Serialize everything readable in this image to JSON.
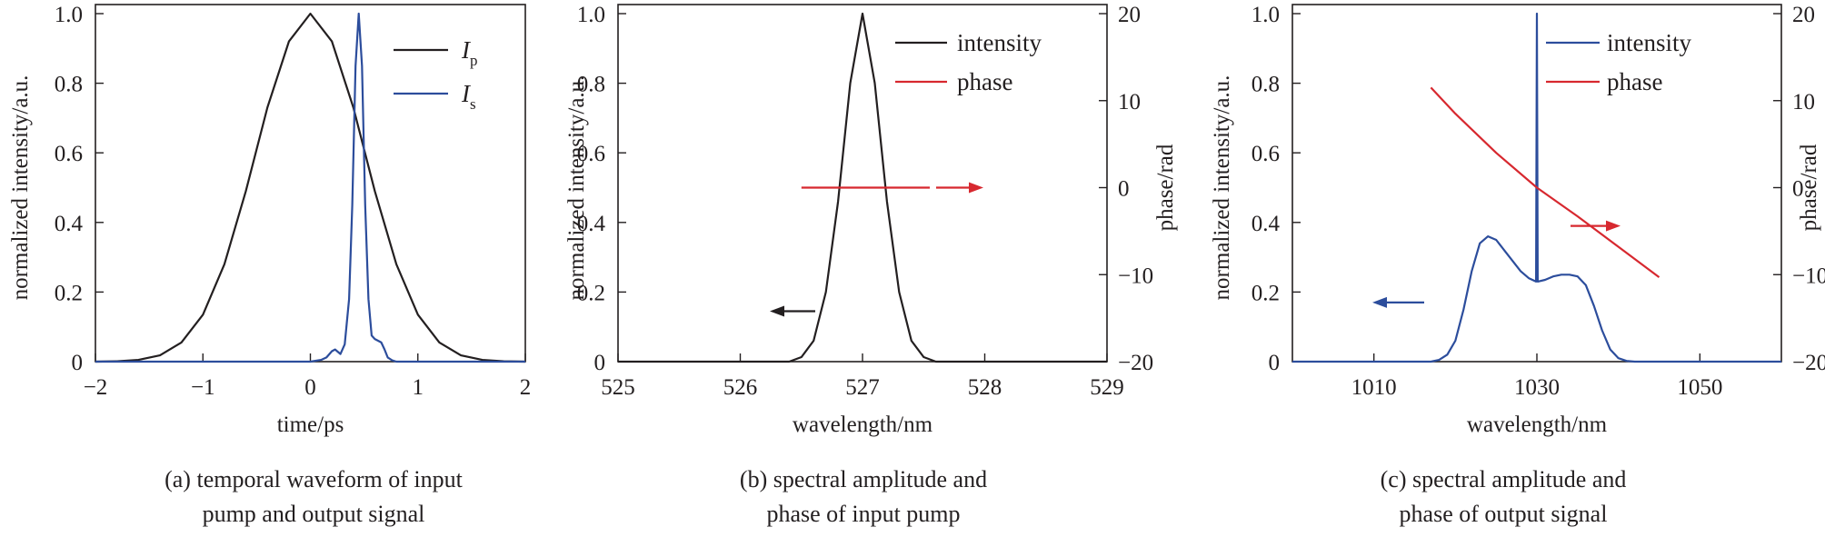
{
  "chart_data": [
    {
      "panel": "a",
      "type": "line",
      "xlabel": "time/ps",
      "ylabel": "normalized intensity/a.u.",
      "xlim": [
        -2,
        2
      ],
      "ylim": [
        0,
        1.0
      ],
      "xticks": [
        "−2",
        "−1",
        "0",
        "1",
        "2"
      ],
      "yticks": [
        "0",
        "0.2",
        "0.4",
        "0.6",
        "0.8",
        "1.0"
      ],
      "caption": [
        "(a) temporal waveform of input",
        "pump and output signal"
      ],
      "legend_position": "top-right",
      "series": [
        {
          "name": "I",
          "subscript": "p",
          "color": "#231f20",
          "x": [
            -2,
            -1.8,
            -1.6,
            -1.4,
            -1.2,
            -1.0,
            -0.8,
            -0.6,
            -0.4,
            -0.2,
            0,
            0.2,
            0.4,
            0.6,
            0.8,
            1.0,
            1.2,
            1.4,
            1.6,
            1.8,
            2.0
          ],
          "y": [
            0,
            0.001,
            0.005,
            0.018,
            0.055,
            0.135,
            0.28,
            0.49,
            0.73,
            0.92,
            1.0,
            0.92,
            0.73,
            0.49,
            0.28,
            0.135,
            0.055,
            0.018,
            0.005,
            0.001,
            0
          ]
        },
        {
          "name": "I",
          "subscript": "s",
          "color": "#2c4d9c",
          "x": [
            -2,
            0.0,
            0.1,
            0.15,
            0.2,
            0.23,
            0.28,
            0.32,
            0.36,
            0.39,
            0.42,
            0.45,
            0.48,
            0.51,
            0.54,
            0.57,
            0.6,
            0.63,
            0.66,
            0.69,
            0.72,
            0.76,
            0.8,
            1.0,
            2.0
          ],
          "y": [
            0,
            0.0,
            0.005,
            0.012,
            0.03,
            0.035,
            0.022,
            0.05,
            0.18,
            0.45,
            0.85,
            1.0,
            0.85,
            0.45,
            0.18,
            0.075,
            0.065,
            0.06,
            0.055,
            0.035,
            0.012,
            0.004,
            0.0,
            0,
            0
          ]
        }
      ]
    },
    {
      "panel": "b",
      "type": "line",
      "xlabel": "wavelength/nm",
      "ylabel": "normalized intensity/a.u.",
      "y2label": "phase/rad",
      "xlim": [
        525,
        529
      ],
      "ylim": [
        0,
        1.0
      ],
      "y2lim": [
        -20,
        20
      ],
      "xticks": [
        "525",
        "526",
        "527",
        "528",
        "529"
      ],
      "yticks": [
        "0",
        "0.2",
        "0.4",
        "0.6",
        "0.8",
        "1.0"
      ],
      "y2ticks": [
        "−20",
        "−10",
        "0",
        "10",
        "20"
      ],
      "caption": [
        "(b) spectral amplitude and",
        "phase of input pump"
      ],
      "legend_position": "top-right",
      "series": [
        {
          "name": "intensity",
          "color": "#231f20",
          "axis": "left",
          "x": [
            525,
            526.4,
            526.5,
            526.6,
            526.7,
            526.8,
            526.9,
            527.0,
            527.1,
            527.2,
            527.3,
            527.4,
            527.5,
            527.6,
            529
          ],
          "y": [
            0,
            0.0,
            0.013,
            0.06,
            0.2,
            0.46,
            0.8,
            1.0,
            0.8,
            0.46,
            0.2,
            0.06,
            0.013,
            0.0,
            0
          ]
        },
        {
          "name": "phase",
          "color": "#d7282f",
          "axis": "right",
          "x": [
            526.5,
            527.55
          ],
          "y": [
            0,
            0
          ]
        }
      ],
      "arrows": [
        {
          "direction": "left",
          "color": "#231f20",
          "axis": "left"
        },
        {
          "direction": "right",
          "color": "#d7282f",
          "axis": "right"
        }
      ]
    },
    {
      "panel": "c",
      "type": "line",
      "xlabel": "wavelength/nm",
      "ylabel": "normalized intensity/a.u.",
      "y2label": "phase/rad",
      "xlim": [
        1000,
        1060
      ],
      "ylim": [
        0,
        1.0
      ],
      "y2lim": [
        -20,
        20
      ],
      "xticks": [
        "1010",
        "1030",
        "1050"
      ],
      "yticks": [
        "0",
        "0.2",
        "0.4",
        "0.6",
        "0.8",
        "1.0"
      ],
      "y2ticks": [
        "−20",
        "−10",
        "0",
        "10",
        "20"
      ],
      "caption": [
        "(c) spectral amplitude and",
        "phase of output signal"
      ],
      "legend_position": "top-right",
      "series": [
        {
          "name": "intensity",
          "color": "#2c4d9c",
          "axis": "left",
          "x": [
            1000,
            1017,
            1018,
            1019,
            1020,
            1021,
            1022,
            1023,
            1024,
            1025,
            1026,
            1027,
            1028,
            1029,
            1029.9,
            1030,
            1030.1,
            1031,
            1032,
            1033,
            1034,
            1035,
            1036,
            1037,
            1038,
            1039,
            1040,
            1041,
            1042,
            1060
          ],
          "y": [
            0,
            0.0,
            0.005,
            0.02,
            0.06,
            0.15,
            0.26,
            0.34,
            0.36,
            0.35,
            0.32,
            0.29,
            0.26,
            0.24,
            0.23,
            1.0,
            0.23,
            0.235,
            0.245,
            0.25,
            0.25,
            0.245,
            0.22,
            0.16,
            0.09,
            0.035,
            0.01,
            0.002,
            0.0,
            0
          ]
        },
        {
          "name": "phase",
          "color": "#d7282f",
          "axis": "right",
          "x": [
            1017,
            1020,
            1025,
            1030,
            1035,
            1040,
            1045
          ],
          "y": [
            11.5,
            8.5,
            4.0,
            0,
            -3.3,
            -6.8,
            -10.3
          ]
        }
      ],
      "arrows": [
        {
          "direction": "left",
          "color": "#2c4d9c",
          "axis": "left"
        },
        {
          "direction": "right",
          "color": "#d7282f",
          "axis": "right"
        }
      ]
    }
  ]
}
